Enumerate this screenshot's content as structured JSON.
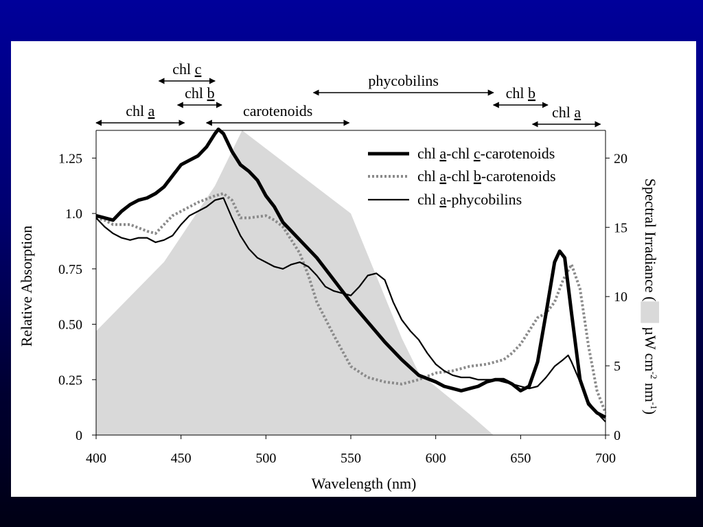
{
  "chart_data": {
    "type": "line",
    "xlabel": "Wavelength (nm)",
    "ylabel": "Relative Absorption",
    "y2label_pre": "Spectral Irradiance (",
    "y2label_post": " µW cm",
    "y2label_sup1": "-2",
    "y2label_mid": " nm",
    "y2label_sup2": "-1",
    "y2label_end": ")",
    "xlim": [
      400,
      700
    ],
    "ylim": [
      0,
      1.375
    ],
    "y2lim": [
      0,
      22
    ],
    "x_ticks": [
      "400",
      "450",
      "500",
      "550",
      "600",
      "650",
      "700"
    ],
    "y_ticks": [
      "0",
      "0.25",
      "0.50",
      "0.75",
      "1.0",
      "1.25"
    ],
    "y2_ticks": [
      "0",
      "5",
      "10",
      "15",
      "20"
    ],
    "grid": false,
    "legend_position": "top-right",
    "series": [
      {
        "name_parts": [
          "chl ",
          "a",
          "-chl ",
          "c",
          "-carotenoids"
        ],
        "style": "thick-solid",
        "x": [
          400,
          405,
          410,
          415,
          420,
          425,
          430,
          435,
          440,
          445,
          450,
          455,
          460,
          465,
          470,
          472,
          475,
          480,
          485,
          490,
          495,
          500,
          505,
          510,
          520,
          530,
          540,
          550,
          560,
          570,
          580,
          590,
          600,
          605,
          610,
          615,
          620,
          625,
          630,
          635,
          640,
          645,
          650,
          655,
          660,
          665,
          670,
          673,
          676,
          680,
          685,
          690,
          695,
          700
        ],
        "y": [
          0.99,
          0.98,
          0.97,
          1.01,
          1.04,
          1.06,
          1.07,
          1.09,
          1.12,
          1.17,
          1.22,
          1.24,
          1.26,
          1.3,
          1.36,
          1.38,
          1.36,
          1.28,
          1.22,
          1.19,
          1.15,
          1.08,
          1.03,
          0.96,
          0.88,
          0.8,
          0.7,
          0.6,
          0.51,
          0.42,
          0.34,
          0.27,
          0.24,
          0.22,
          0.21,
          0.2,
          0.21,
          0.22,
          0.24,
          0.25,
          0.25,
          0.23,
          0.2,
          0.22,
          0.33,
          0.55,
          0.78,
          0.83,
          0.8,
          0.55,
          0.25,
          0.14,
          0.1,
          0.08
        ]
      },
      {
        "name_parts": [
          "chl ",
          "a",
          "-chl ",
          "b",
          "-carotenoids"
        ],
        "style": "dotted",
        "x": [
          400,
          405,
          410,
          420,
          430,
          435,
          440,
          445,
          450,
          460,
          470,
          475,
          480,
          485,
          490,
          500,
          505,
          510,
          515,
          520,
          525,
          530,
          540,
          550,
          560,
          570,
          580,
          590,
          600,
          610,
          620,
          630,
          640,
          645,
          650,
          655,
          660,
          665,
          670,
          675,
          680,
          685,
          690,
          695,
          700
        ],
        "y": [
          0.98,
          0.97,
          0.95,
          0.95,
          0.92,
          0.91,
          0.95,
          0.99,
          1.01,
          1.05,
          1.08,
          1.09,
          1.06,
          0.98,
          0.98,
          0.99,
          0.97,
          0.94,
          0.88,
          0.82,
          0.72,
          0.6,
          0.45,
          0.31,
          0.26,
          0.24,
          0.23,
          0.25,
          0.28,
          0.29,
          0.31,
          0.32,
          0.34,
          0.37,
          0.41,
          0.47,
          0.53,
          0.55,
          0.6,
          0.7,
          0.77,
          0.66,
          0.4,
          0.2,
          0.1
        ]
      },
      {
        "name_parts": [
          "chl ",
          "a",
          "-phycobilins"
        ],
        "style": "thin-solid",
        "x": [
          400,
          405,
          410,
          415,
          420,
          425,
          430,
          435,
          440,
          445,
          450,
          455,
          460,
          465,
          470,
          475,
          480,
          485,
          490,
          495,
          500,
          505,
          510,
          515,
          520,
          525,
          530,
          535,
          540,
          545,
          550,
          555,
          560,
          565,
          570,
          575,
          580,
          585,
          590,
          595,
          600,
          605,
          610,
          615,
          620,
          625,
          630,
          635,
          640,
          645,
          650,
          655,
          660,
          665,
          670,
          675,
          678,
          680,
          685,
          690,
          695,
          700
        ],
        "y": [
          0.98,
          0.94,
          0.91,
          0.89,
          0.88,
          0.89,
          0.89,
          0.87,
          0.88,
          0.9,
          0.95,
          0.99,
          1.01,
          1.03,
          1.06,
          1.07,
          0.98,
          0.9,
          0.84,
          0.8,
          0.78,
          0.76,
          0.75,
          0.77,
          0.78,
          0.76,
          0.72,
          0.67,
          0.65,
          0.64,
          0.63,
          0.67,
          0.72,
          0.73,
          0.7,
          0.6,
          0.52,
          0.47,
          0.43,
          0.37,
          0.32,
          0.29,
          0.27,
          0.26,
          0.26,
          0.25,
          0.25,
          0.25,
          0.24,
          0.23,
          0.22,
          0.21,
          0.22,
          0.26,
          0.31,
          0.34,
          0.36,
          0.33,
          0.24,
          0.15,
          0.1,
          0.06
        ]
      }
    ],
    "irradiance": {
      "x": [
        400,
        440,
        470,
        486,
        550,
        560,
        580,
        590,
        600,
        620,
        634
      ],
      "y": [
        7.5,
        12.5,
        18.0,
        22.0,
        16.0,
        13.0,
        7.0,
        4.5,
        3.5,
        1.5,
        0.0
      ]
    },
    "bands": [
      {
        "parts": [
          "chl ",
          "c"
        ],
        "x1": 437,
        "x2": 470,
        "row": 0
      },
      {
        "parts": [
          "phycobilins"
        ],
        "x1": 528,
        "x2": 634,
        "row": 1
      },
      {
        "parts": [
          "chl ",
          "b"
        ],
        "x1": 448,
        "x2": 474,
        "row": 2
      },
      {
        "parts": [
          "chl ",
          "b"
        ],
        "x1": 634,
        "x2": 666,
        "row": 3
      },
      {
        "parts": [
          "chl ",
          "a"
        ],
        "x1": 400,
        "x2": 452,
        "row": 4
      },
      {
        "parts": [
          "carotenoids"
        ],
        "x1": 465,
        "x2": 549,
        "row": 5
      },
      {
        "parts": [
          "chl ",
          "a"
        ],
        "x1": 657,
        "x2": 697,
        "row": 6
      }
    ]
  }
}
